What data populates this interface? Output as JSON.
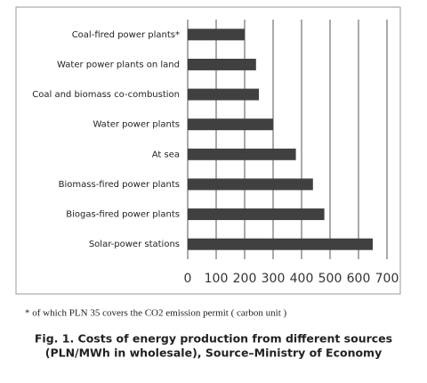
{
  "chart_data": {
    "type": "bar",
    "orientation": "horizontal",
    "categories": [
      "Coal-fired power plants*",
      "Water power plants on land",
      "Coal and  biomass co-combustion",
      "Water power plants",
      "At sea",
      "Biomass-fired power plants",
      "Biogas-fired power plants",
      "Solar-power stations"
    ],
    "values": [
      200,
      240,
      250,
      300,
      380,
      440,
      480,
      650
    ],
    "color": "#404040",
    "xlim": [
      0,
      700
    ],
    "xticks": [
      0,
      100,
      200,
      300,
      400,
      500,
      600,
      700
    ],
    "grid": true,
    "footnote": "* of which PLN 35 covers the CO2 emission permit ( carbon unit )",
    "caption": [
      "Fig. 1. Costs of energy production from different sources",
      "(PLN/MWh in wholesale), Source–Ministry of Economy"
    ]
  }
}
